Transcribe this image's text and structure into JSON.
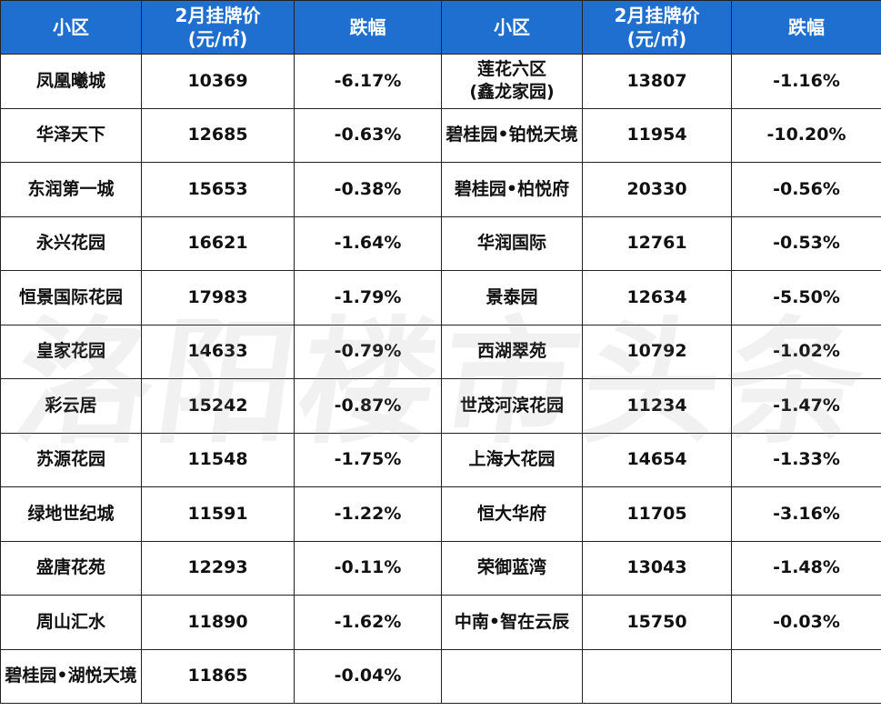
{
  "header": {
    "col1": "小区",
    "col2_line1": "2月挂牌价",
    "col2_line2": "(元/㎡)",
    "col3": "跌幅",
    "col4": "小区",
    "col5_line1": "2月挂牌价",
    "col5_line2": "(元/㎡)",
    "col6": "跌幅"
  },
  "left_rows": [
    {
      "name": "凤凰曦城",
      "price": "10369",
      "change": "-6.17%"
    },
    {
      "name": "华泽天下",
      "price": "12685",
      "change": "-0.63%"
    },
    {
      "name": "东润第一城",
      "price": "15653",
      "change": "-0.38%"
    },
    {
      "name": "永兴花园",
      "price": "16621",
      "change": "-1.64%"
    },
    {
      "name": "恒景国际花园",
      "price": "17983",
      "change": "-1.79%"
    },
    {
      "name": "皇家花园",
      "price": "14633",
      "change": "-0.79%"
    },
    {
      "name": "彩云居",
      "price": "15242",
      "change": "-0.87%"
    },
    {
      "name": "苏源花园",
      "price": "11548",
      "change": "-1.75%"
    },
    {
      "name": "绿地世纪城",
      "price": "11591",
      "change": "-1.22%"
    },
    {
      "name": "盛唐花苑",
      "price": "12293",
      "change": "-0.11%"
    },
    {
      "name": "周山汇水",
      "price": "11890",
      "change": "-1.62%"
    },
    {
      "name": "碧桂园•湖悦天境",
      "price": "11865",
      "change": "-0.04%"
    }
  ],
  "right_rows": [
    {
      "name_line1": "莲花六区",
      "name_line2": "(鑫龙家园)",
      "price": "13807",
      "change": "-1.16%"
    },
    {
      "name_line1": "碧桂园•铂悦天境",
      "name_line2": "",
      "price": "11954",
      "change": "-10.20%"
    },
    {
      "name_line1": "碧桂园•柏悦府",
      "name_line2": "",
      "price": "20330",
      "change": "-0.56%"
    },
    {
      "name_line1": "华润国际",
      "name_line2": "",
      "price": "12761",
      "change": "-0.53%"
    },
    {
      "name_line1": "景泰园",
      "name_line2": "",
      "price": "12634",
      "change": "-5.50%"
    },
    {
      "name_line1": "西湖翠苑",
      "name_line2": "",
      "price": "10792",
      "change": "-1.02%"
    },
    {
      "name_line1": "世茂河滨花园",
      "name_line2": "",
      "price": "11234",
      "change": "-1.47%"
    },
    {
      "name_line1": "上海大花园",
      "name_line2": "",
      "price": "14654",
      "change": "-1.33%"
    },
    {
      "name_line1": "恒大华府",
      "name_line2": "",
      "price": "11705",
      "change": "-3.16%"
    },
    {
      "name_line1": "荣御蓝湾",
      "name_line2": "",
      "price": "13043",
      "change": "-1.48%"
    },
    {
      "name_line1": "中南•智在云辰",
      "name_line2": "",
      "price": "15750",
      "change": "-0.03%"
    },
    {
      "name_line1": "",
      "name_line2": "",
      "price": "",
      "change": ""
    }
  ],
  "watermark": "洛阳楼市头条",
  "colors": {
    "header_bg": "#1f6fd1",
    "header_text": "#ffffff",
    "border": "#222222"
  }
}
